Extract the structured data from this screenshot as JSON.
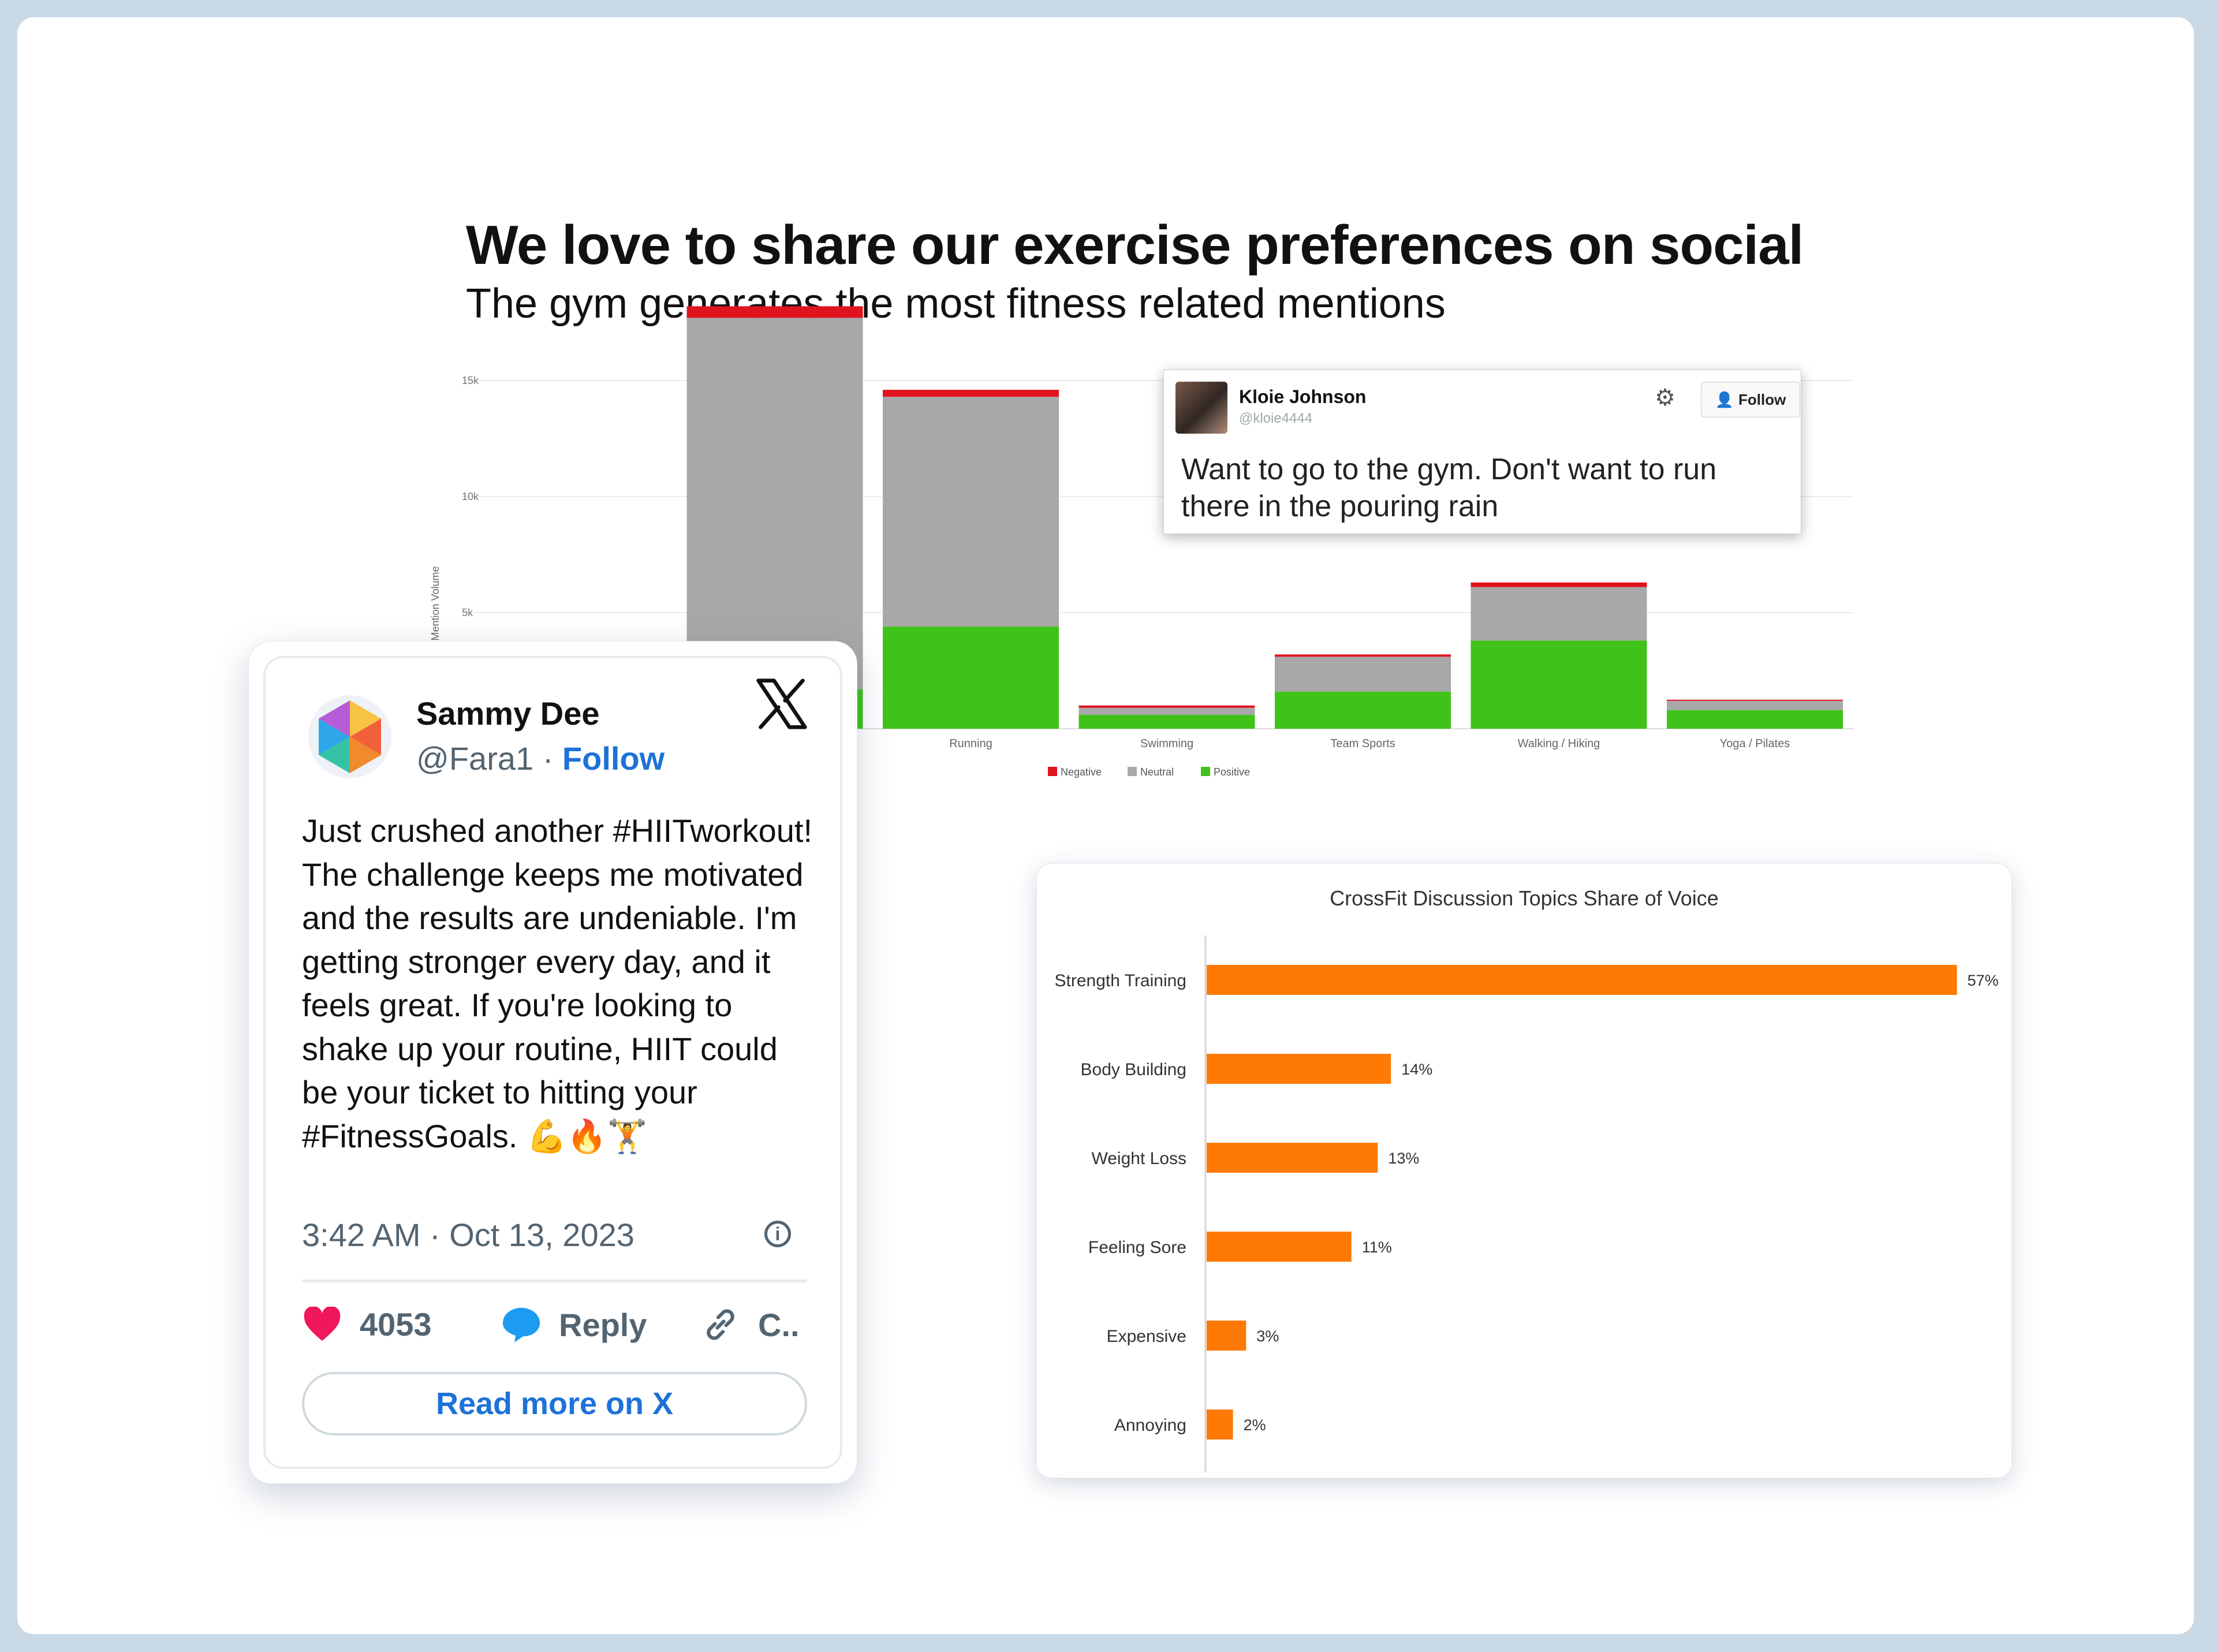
{
  "page": {
    "title": "We love to share our exercise preferences on social",
    "subtitle": "The gym generates the most fitness related mentions"
  },
  "colors": {
    "negative": "#e0141e",
    "neutral": "#a8a8a8",
    "positive": "#3fc31a",
    "crossfit_bar": "#ff7a05",
    "follow_blue": "#1d72d8",
    "heart": "#f0175a"
  },
  "chart_data": [
    {
      "type": "bar",
      "stacked": true,
      "title": "",
      "ylabel": "Mention Volume",
      "y_ticks": [
        "15k",
        "10k",
        "5k"
      ],
      "ylim": [
        0,
        17000
      ],
      "categories": [
        "",
        "Running",
        "Swimming",
        "Team Sports",
        "Walking / Hiking",
        "Yoga / Pilates"
      ],
      "series": [
        {
          "name": "Negative",
          "values": [
            500,
            300,
            100,
            100,
            200,
            50
          ]
        },
        {
          "name": "Neutral",
          "values": [
            16000,
            9900,
            300,
            1500,
            2300,
            400
          ]
        },
        {
          "name": "Positive",
          "values": [
            1700,
            4400,
            600,
            1600,
            3800,
            800
          ]
        }
      ],
      "legend": "bottom",
      "grid": true
    },
    {
      "type": "bar",
      "orientation": "horizontal",
      "title": "CrossFit Discussion Topics Share of Voice",
      "categories": [
        "Strength Training",
        "Body Building",
        "Weight Loss",
        "Feeling Sore",
        "Expensive",
        "Annoying"
      ],
      "values": [
        57,
        14,
        13,
        11,
        3,
        2
      ],
      "value_labels": [
        "57%",
        "14%",
        "13%",
        "11%",
        "3%",
        "2%"
      ],
      "unit": "%",
      "grid": false
    }
  ],
  "tweet_small": {
    "name": "Kloie Johnson",
    "handle": "@kloie4444",
    "gear_icon": "gear-icon",
    "follow_label": "Follow",
    "text": "Want to go to the gym. Don't want to run there in the pouring rain"
  },
  "tweet_large": {
    "name": "Sammy Dee",
    "handle": "@Fara1",
    "separator": " · ",
    "follow_label": "Follow",
    "text": "Just crushed another #HIITworkout! The challenge keeps me motivated and the results are undeniable. I'm getting stronger every day, and it feels great. If you're looking to shake up your routine, HIIT could be your ticket to hitting your #FitnessGoals. 💪🔥🏋",
    "time": "3:42 AM · Oct 13, 2023",
    "likes": "4053",
    "reply_label": "Reply",
    "copy_label": "C..",
    "read_more_label": "Read more on X"
  }
}
